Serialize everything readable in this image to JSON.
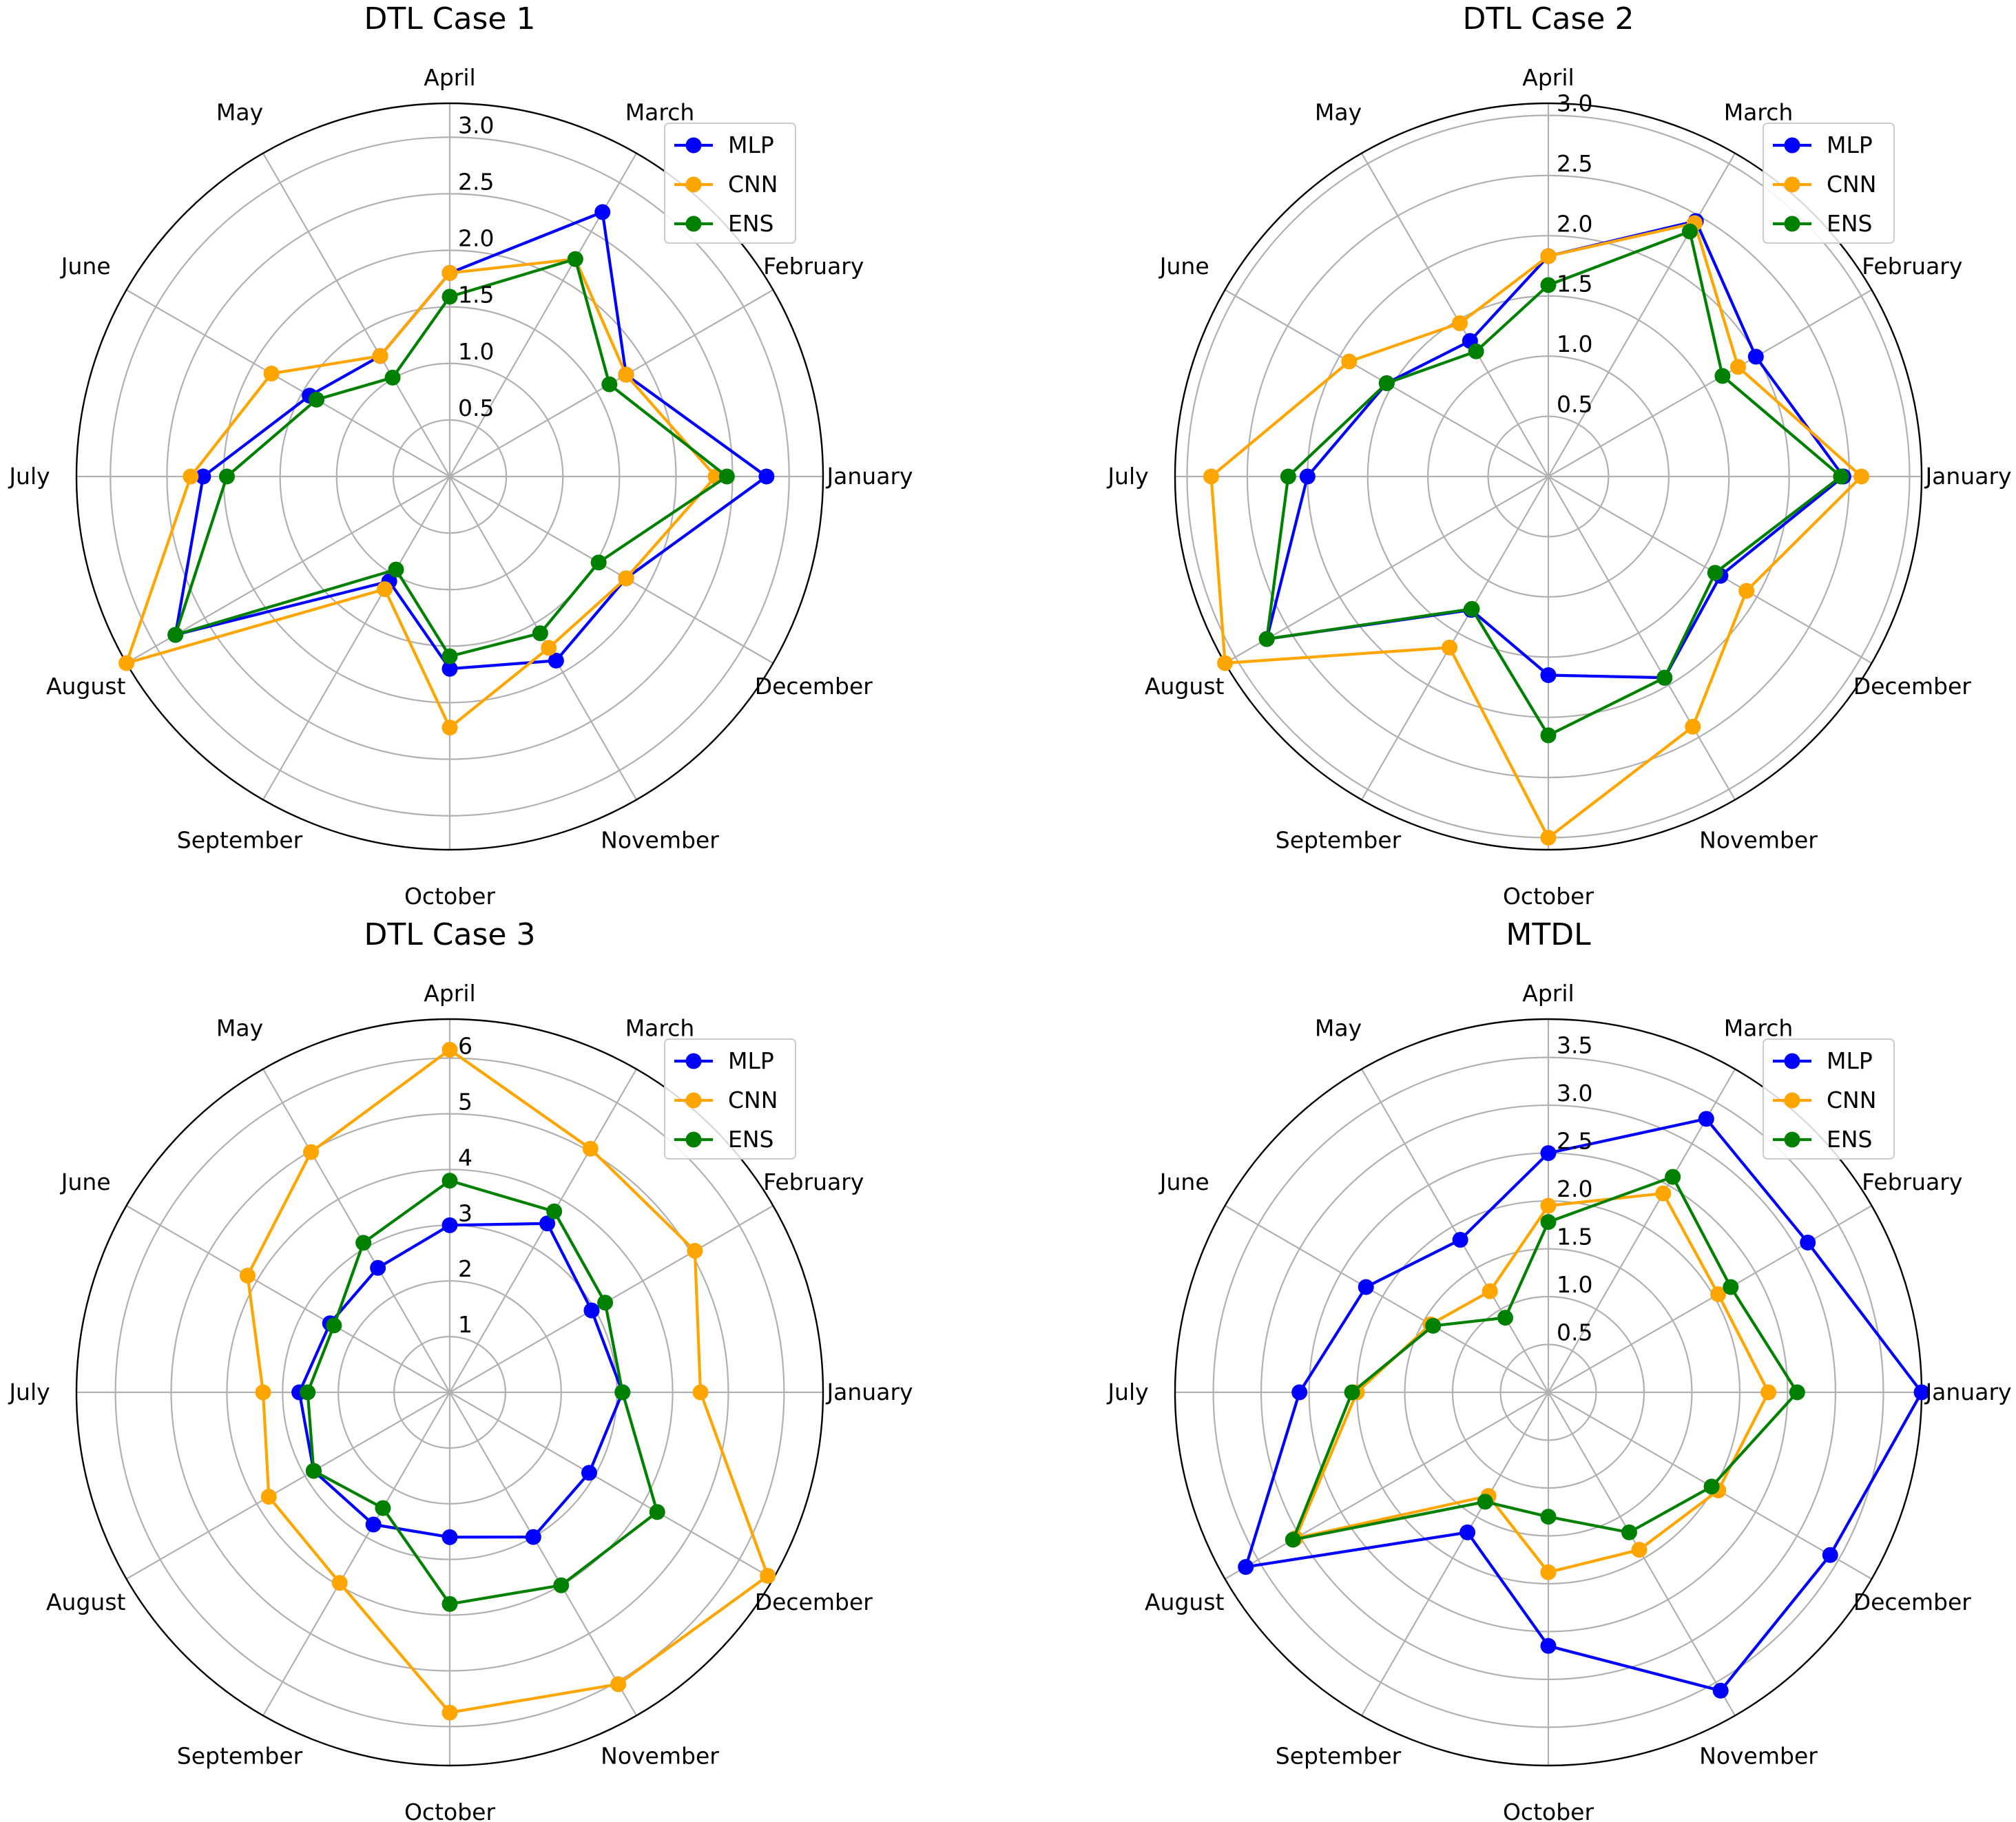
{
  "chart_data": [
    {
      "type": "radar",
      "title": "DTL Case 1",
      "categories": [
        "January",
        "February",
        "March",
        "April",
        "May",
        "June",
        "July",
        "August",
        "September",
        "October",
        "November",
        "December"
      ],
      "rlim": [
        0,
        3.3
      ],
      "rticks": [
        0.5,
        1.0,
        1.5,
        2.0,
        2.5,
        3.0
      ],
      "rtick_labels": [
        "0.5",
        "1.0",
        "1.5",
        "2.0",
        "2.5",
        "3.0"
      ],
      "legend_position": "top-right",
      "series": [
        {
          "name": "MLP",
          "color": "#0000ff",
          "values": [
            2.8,
            1.8,
            2.7,
            1.8,
            1.23,
            1.43,
            2.18,
            2.8,
            1.07,
            1.7,
            1.88,
            1.8
          ]
        },
        {
          "name": "CNN",
          "color": "#ffa500",
          "values": [
            2.35,
            1.8,
            2.22,
            1.8,
            1.23,
            1.82,
            2.29,
            3.3,
            1.15,
            2.22,
            1.75,
            1.8
          ]
        },
        {
          "name": "ENS",
          "color": "#008000",
          "values": [
            2.45,
            1.63,
            2.22,
            1.59,
            1.01,
            1.36,
            1.97,
            2.8,
            0.95,
            1.59,
            1.6,
            1.52
          ]
        }
      ]
    },
    {
      "type": "radar",
      "title": "DTL Case 2",
      "categories": [
        "January",
        "February",
        "March",
        "April",
        "May",
        "June",
        "July",
        "August",
        "September",
        "October",
        "November",
        "December"
      ],
      "rlim": [
        0,
        3.1
      ],
      "rticks": [
        0.5,
        1.0,
        1.5,
        2.0,
        2.5,
        3.0
      ],
      "rtick_labels": [
        "0.5",
        "1.0",
        "1.5",
        "2.0",
        "2.5",
        "3.0"
      ],
      "legend_position": "top-right",
      "series": [
        {
          "name": "MLP",
          "color": "#0000ff",
          "values": [
            2.45,
            1.99,
            2.45,
            1.83,
            1.3,
            1.55,
            2.0,
            2.7,
            1.28,
            1.65,
            1.93,
            1.65
          ]
        },
        {
          "name": "CNN",
          "color": "#ffa500",
          "values": [
            2.6,
            1.82,
            2.43,
            1.83,
            1.47,
            1.91,
            2.8,
            3.1,
            1.64,
            3.0,
            2.4,
            1.9
          ]
        },
        {
          "name": "ENS",
          "color": "#008000",
          "values": [
            2.43,
            1.67,
            2.35,
            1.59,
            1.2,
            1.55,
            2.16,
            2.7,
            1.27,
            2.15,
            1.93,
            1.6
          ]
        }
      ]
    },
    {
      "type": "radar",
      "title": "DTL Case 3",
      "categories": [
        "January",
        "February",
        "March",
        "April",
        "May",
        "June",
        "July",
        "August",
        "September",
        "October",
        "November",
        "December"
      ],
      "rlim": [
        0,
        6.7
      ],
      "rticks": [
        1,
        2,
        3,
        4,
        5,
        6
      ],
      "rtick_labels": [
        "1",
        "2",
        "3",
        "4",
        "5",
        "6"
      ],
      "legend_position": "top-right",
      "series": [
        {
          "name": "MLP",
          "color": "#0000ff",
          "values": [
            3.1,
            2.94,
            3.5,
            3.0,
            2.58,
            2.48,
            2.7,
            2.82,
            2.74,
            2.6,
            3.0,
            2.89
          ]
        },
        {
          "name": "CNN",
          "color": "#ffa500",
          "values": [
            4.5,
            5.08,
            5.05,
            6.15,
            4.98,
            4.19,
            3.35,
            3.75,
            3.95,
            5.75,
            6.05,
            6.59
          ]
        },
        {
          "name": "ENS",
          "color": "#008000",
          "values": [
            3.1,
            3.22,
            3.75,
            3.8,
            3.1,
            2.4,
            2.55,
            2.82,
            2.4,
            3.8,
            4.0,
            4.3
          ]
        }
      ]
    },
    {
      "type": "radar",
      "title": "MTDL",
      "categories": [
        "January",
        "February",
        "March",
        "April",
        "May",
        "June",
        "July",
        "August",
        "September",
        "October",
        "November",
        "December"
      ],
      "rlim": [
        0,
        3.9
      ],
      "rticks": [
        0.5,
        1.0,
        1.5,
        2.0,
        2.5,
        3.0,
        3.5
      ],
      "rtick_labels": [
        "0.5",
        "1.0",
        "1.5",
        "2.0",
        "2.5",
        "3.0",
        "3.5"
      ],
      "legend_position": "top-right",
      "series": [
        {
          "name": "MLP",
          "color": "#0000ff",
          "values": [
            3.9,
            3.13,
            3.3,
            2.5,
            1.84,
            2.2,
            2.6,
            3.65,
            1.69,
            2.65,
            3.6,
            3.4
          ]
        },
        {
          "name": "CNN",
          "color": "#ffa500",
          "values": [
            2.3,
            2.05,
            2.4,
            1.95,
            1.22,
            1.42,
            2.0,
            3.05,
            1.25,
            1.88,
            1.9,
            2.05
          ]
        },
        {
          "name": "ENS",
          "color": "#008000",
          "values": [
            2.6,
            2.2,
            2.6,
            1.78,
            0.9,
            1.39,
            2.05,
            3.08,
            1.32,
            1.3,
            1.69,
            1.97
          ]
        }
      ]
    }
  ]
}
